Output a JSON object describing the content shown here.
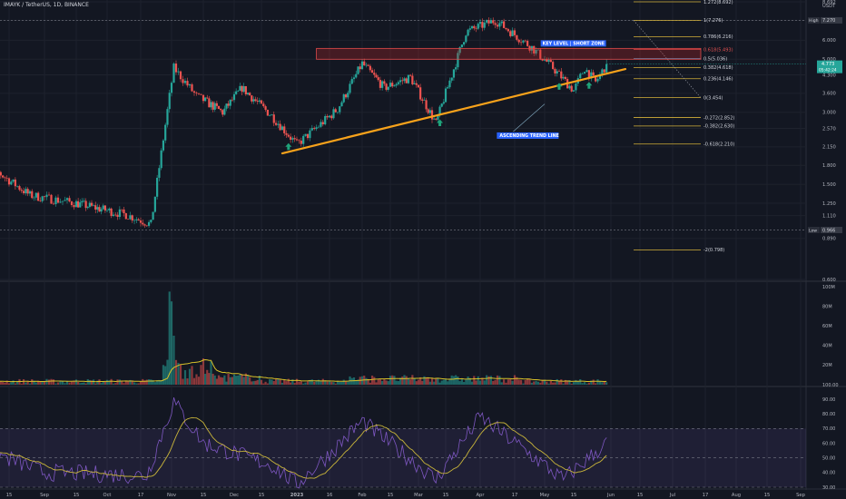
{
  "symbol": "IMAYK / TetherUS, 1D, BINANCE",
  "colors": {
    "background": "#131722",
    "up": "#26a69a",
    "down": "#ef5350",
    "fib": "#d4b13a",
    "trendline": "#f7a21b",
    "zone_border": "#e04b4b",
    "zone_fill": "rgba(200,40,40,0.28)",
    "rsi_line": "#7e57c2",
    "rsi_ma": "#c9b53a",
    "vol_ma": "#d8c229",
    "arrow": "#1fa37a",
    "label_bg": "#2962ff"
  },
  "chart_data": [
    {
      "type": "candlestick",
      "title": "",
      "scale": "log",
      "y_ticks": [
        "8.692",
        "7.270",
        "6.000",
        "5.000",
        "4.300",
        "3.600",
        "3.000",
        "2.570",
        "2.150",
        "1.800",
        "1.500",
        "1.250",
        "1.110",
        "0.890",
        "0.600"
      ],
      "y_unit_label": "USDT",
      "x_ticks": [
        "15",
        "Sep",
        "15",
        "Oct",
        "17",
        "Nov",
        "15",
        "Dec",
        "15",
        "2023",
        "16",
        "Feb",
        "15",
        "Mar",
        "15",
        "Apr",
        "17",
        "May",
        "15",
        "Jun",
        "15",
        "Jul",
        "17",
        "Aug",
        "15",
        "Sep"
      ],
      "high_label": "High",
      "high_value": "7.270",
      "low_label": "Low",
      "low_value": "0.966",
      "current_price": "4.773",
      "current_countdown": "05:42:24",
      "key_points": [
        {
          "date": "2022-08-05",
          "close": 1.8
        },
        {
          "date": "2022-08-25",
          "close": 1.35
        },
        {
          "date": "2022-09-15",
          "close": 1.25
        },
        {
          "date": "2022-10-10",
          "close": 1.12
        },
        {
          "date": "2022-10-22",
          "close": 1.02
        },
        {
          "date": "2022-11-02",
          "close": 4.6
        },
        {
          "date": "2022-11-12",
          "close": 3.5
        },
        {
          "date": "2022-11-25",
          "close": 3.0
        },
        {
          "date": "2022-12-05",
          "close": 3.8
        },
        {
          "date": "2022-12-20",
          "close": 2.9
        },
        {
          "date": "2023-01-01",
          "close": 2.2
        },
        {
          "date": "2023-01-20",
          "close": 3.1
        },
        {
          "date": "2023-02-01",
          "close": 4.8
        },
        {
          "date": "2023-02-12",
          "close": 3.8
        },
        {
          "date": "2023-02-25",
          "close": 4.2
        },
        {
          "date": "2023-03-10",
          "close": 2.7
        },
        {
          "date": "2023-03-18",
          "close": 4.3
        },
        {
          "date": "2023-03-25",
          "close": 6.5
        },
        {
          "date": "2023-04-08",
          "close": 7.27
        },
        {
          "date": "2023-04-25",
          "close": 5.6
        },
        {
          "date": "2023-05-05",
          "close": 4.6
        },
        {
          "date": "2023-05-15",
          "close": 3.7
        },
        {
          "date": "2023-05-20",
          "close": 4.6
        },
        {
          "date": "2023-05-25",
          "close": 4.0
        },
        {
          "date": "2023-05-30",
          "close": 4.77
        }
      ],
      "fib_levels": [
        {
          "label": "1.272(8.692)",
          "value": 8.692
        },
        {
          "label": "1(7.276)",
          "value": 7.276
        },
        {
          "label": "0.786(6.216)",
          "value": 6.216
        },
        {
          "label": "0.618(5.493)",
          "value": 5.493
        },
        {
          "label": "0.5(5.036)",
          "value": 5.036
        },
        {
          "label": "0.382(4.618)",
          "value": 4.618
        },
        {
          "label": "0.236(4.146)",
          "value": 4.146
        },
        {
          "label": "0(3.454)",
          "value": 3.454
        },
        {
          "label": "-0.272(2.852)",
          "value": 2.852
        },
        {
          "label": "-0.382(2.630)",
          "value": 2.63
        },
        {
          "label": "-0.618(2.210)",
          "value": 2.21
        },
        {
          "label": "-2(0.798)",
          "value": 0.798
        }
      ],
      "annotations": {
        "key_level": "KEY LEVEL | SHORT ZONE",
        "trend_line": "ASCENDING TREND LINE"
      },
      "zone": {
        "low": 5.0,
        "high": 5.55
      },
      "trendline": {
        "start": {
          "date": "2022-12-25",
          "value": 2.02
        },
        "end": {
          "date": "2023-06-08",
          "value": 4.55
        }
      },
      "arrows": [
        "2022-12-28",
        "2023-03-12",
        "2023-05-08",
        "2023-05-22"
      ]
    },
    {
      "type": "bar",
      "title": "",
      "y_ticks": [
        "100M",
        "80M",
        "60M",
        "40M",
        "20M",
        "100.00"
      ],
      "notable_bars_M": {
        "2022-10-31": 95,
        "2022-11-01": 85,
        "2022-11-02": 50
      }
    },
    {
      "type": "line",
      "title": "",
      "y_ticks": [
        "90.00",
        "80.00",
        "70.00",
        "60.00",
        "50.00",
        "40.00",
        "30.00"
      ],
      "band": [
        30,
        70
      ],
      "key_points": [
        {
          "date": "2022-08-05",
          "value": 55
        },
        {
          "date": "2022-09-01",
          "value": 40
        },
        {
          "date": "2022-10-20",
          "value": 38
        },
        {
          "date": "2022-11-02",
          "value": 88
        },
        {
          "date": "2022-11-15",
          "value": 60
        },
        {
          "date": "2022-12-20",
          "value": 45
        },
        {
          "date": "2023-01-01",
          "value": 32
        },
        {
          "date": "2023-02-01",
          "value": 75
        },
        {
          "date": "2023-03-10",
          "value": 35
        },
        {
          "date": "2023-04-01",
          "value": 78
        },
        {
          "date": "2023-05-10",
          "value": 35
        },
        {
          "date": "2023-05-30",
          "value": 60
        }
      ]
    }
  ]
}
